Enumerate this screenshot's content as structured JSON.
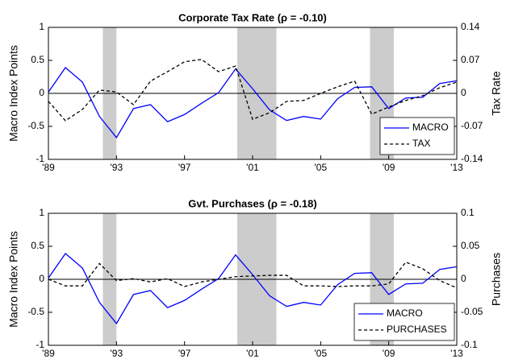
{
  "chart_data": [
    {
      "type": "line",
      "title": "Corporate Tax Rate (ρ = -0.10)",
      "ylabel": "Macro Index Points",
      "y2label": "Tax Rate",
      "x": [
        1989,
        1990,
        1991,
        1992,
        1993,
        1994,
        1995,
        1996,
        1997,
        1998,
        1999,
        2000,
        2001,
        2002,
        2003,
        2004,
        2005,
        2006,
        2007,
        2008,
        2009,
        2010,
        2011,
        2012,
        2013
      ],
      "xlim": [
        1989,
        2013
      ],
      "xticks": [
        {
          "value": 1989,
          "label": "'89"
        },
        {
          "value": 1993,
          "label": "'93"
        },
        {
          "value": 1997,
          "label": "'97"
        },
        {
          "value": 2001,
          "label": "'01"
        },
        {
          "value": 2005,
          "label": "'05"
        },
        {
          "value": 2009,
          "label": "'09"
        },
        {
          "value": 2013,
          "label": "'13"
        }
      ],
      "ylim": [
        -1,
        1
      ],
      "yticks": [
        -1,
        -0.5,
        0,
        0.5,
        1
      ],
      "y2lim": [
        -0.14,
        0.14
      ],
      "y2ticks": [
        -0.14,
        -0.07,
        0,
        0.07,
        0.14
      ],
      "shaded_periods": [
        [
          1992.2,
          1993.0
        ],
        [
          2000.1,
          2002.4
        ],
        [
          2007.9,
          2009.3
        ]
      ],
      "shade_color": "#cccccc",
      "legend": "lower right",
      "series": [
        {
          "name": "MACRO",
          "color": "#0000ff",
          "dash": false,
          "values": [
            0.02,
            0.39,
            0.17,
            -0.35,
            -0.67,
            -0.23,
            -0.17,
            -0.43,
            -0.32,
            -0.15,
            0.01,
            0.37,
            0.07,
            -0.25,
            -0.41,
            -0.35,
            -0.39,
            -0.08,
            0.09,
            0.1,
            -0.23,
            -0.07,
            -0.06,
            0.15,
            0.19
          ]
        },
        {
          "name": "TAX",
          "color": "#000000",
          "dash": true,
          "axis": "y2",
          "values": [
            -0.017,
            -0.058,
            -0.034,
            0.007,
            0.003,
            -0.024,
            0.026,
            0.046,
            0.067,
            0.072,
            0.046,
            0.058,
            -0.055,
            -0.041,
            -0.017,
            -0.015,
            0,
            0.014,
            0.026,
            -0.044,
            -0.029,
            -0.015,
            -0.005,
            0.012,
            0.024
          ]
        }
      ]
    },
    {
      "type": "line",
      "title": "Gvt. Purchases (ρ = -0.18)",
      "ylabel": "Macro Index Points",
      "y2label": "Purchases",
      "x": [
        1989,
        1990,
        1991,
        1992,
        1993,
        1994,
        1995,
        1996,
        1997,
        1998,
        1999,
        2000,
        2001,
        2002,
        2003,
        2004,
        2005,
        2006,
        2007,
        2008,
        2009,
        2010,
        2011,
        2012,
        2013
      ],
      "xlim": [
        1989,
        2013
      ],
      "xticks": [
        {
          "value": 1989,
          "label": "'89"
        },
        {
          "value": 1993,
          "label": "'93"
        },
        {
          "value": 1997,
          "label": "'97"
        },
        {
          "value": 2001,
          "label": "'01"
        },
        {
          "value": 2005,
          "label": "'05"
        },
        {
          "value": 2009,
          "label": "'09"
        },
        {
          "value": 2013,
          "label": "'13"
        }
      ],
      "ylim": [
        -1,
        1
      ],
      "yticks": [
        -1,
        -0.5,
        0,
        0.5,
        1
      ],
      "y2lim": [
        -0.1,
        0.1
      ],
      "y2ticks": [
        -0.1,
        -0.05,
        0,
        0.05,
        0.1
      ],
      "shaded_periods": [
        [
          1992.2,
          1993.0
        ],
        [
          2000.1,
          2002.4
        ],
        [
          2007.9,
          2009.3
        ]
      ],
      "shade_color": "#cccccc",
      "legend": "lower right",
      "series": [
        {
          "name": "MACRO",
          "color": "#0000ff",
          "dash": false,
          "values": [
            0.02,
            0.39,
            0.17,
            -0.35,
            -0.67,
            -0.23,
            -0.17,
            -0.43,
            -0.32,
            -0.15,
            0.01,
            0.37,
            0.07,
            -0.25,
            -0.41,
            -0.35,
            -0.39,
            -0.08,
            0.09,
            0.1,
            -0.23,
            -0.07,
            -0.06,
            0.15,
            0.19
          ]
        },
        {
          "name": "PURCHASES",
          "color": "#000000",
          "dash": true,
          "axis": "y2",
          "values": [
            0,
            -0.01,
            -0.01,
            0.024,
            -0.002,
            0.001,
            -0.004,
            0.001,
            -0.011,
            -0.004,
            0,
            0.004,
            0.005,
            0.006,
            0.006,
            -0.01,
            -0.01,
            -0.011,
            -0.01,
            -0.01,
            -0.007,
            0.026,
            0.016,
            -0.002,
            -0.013
          ]
        }
      ]
    }
  ]
}
